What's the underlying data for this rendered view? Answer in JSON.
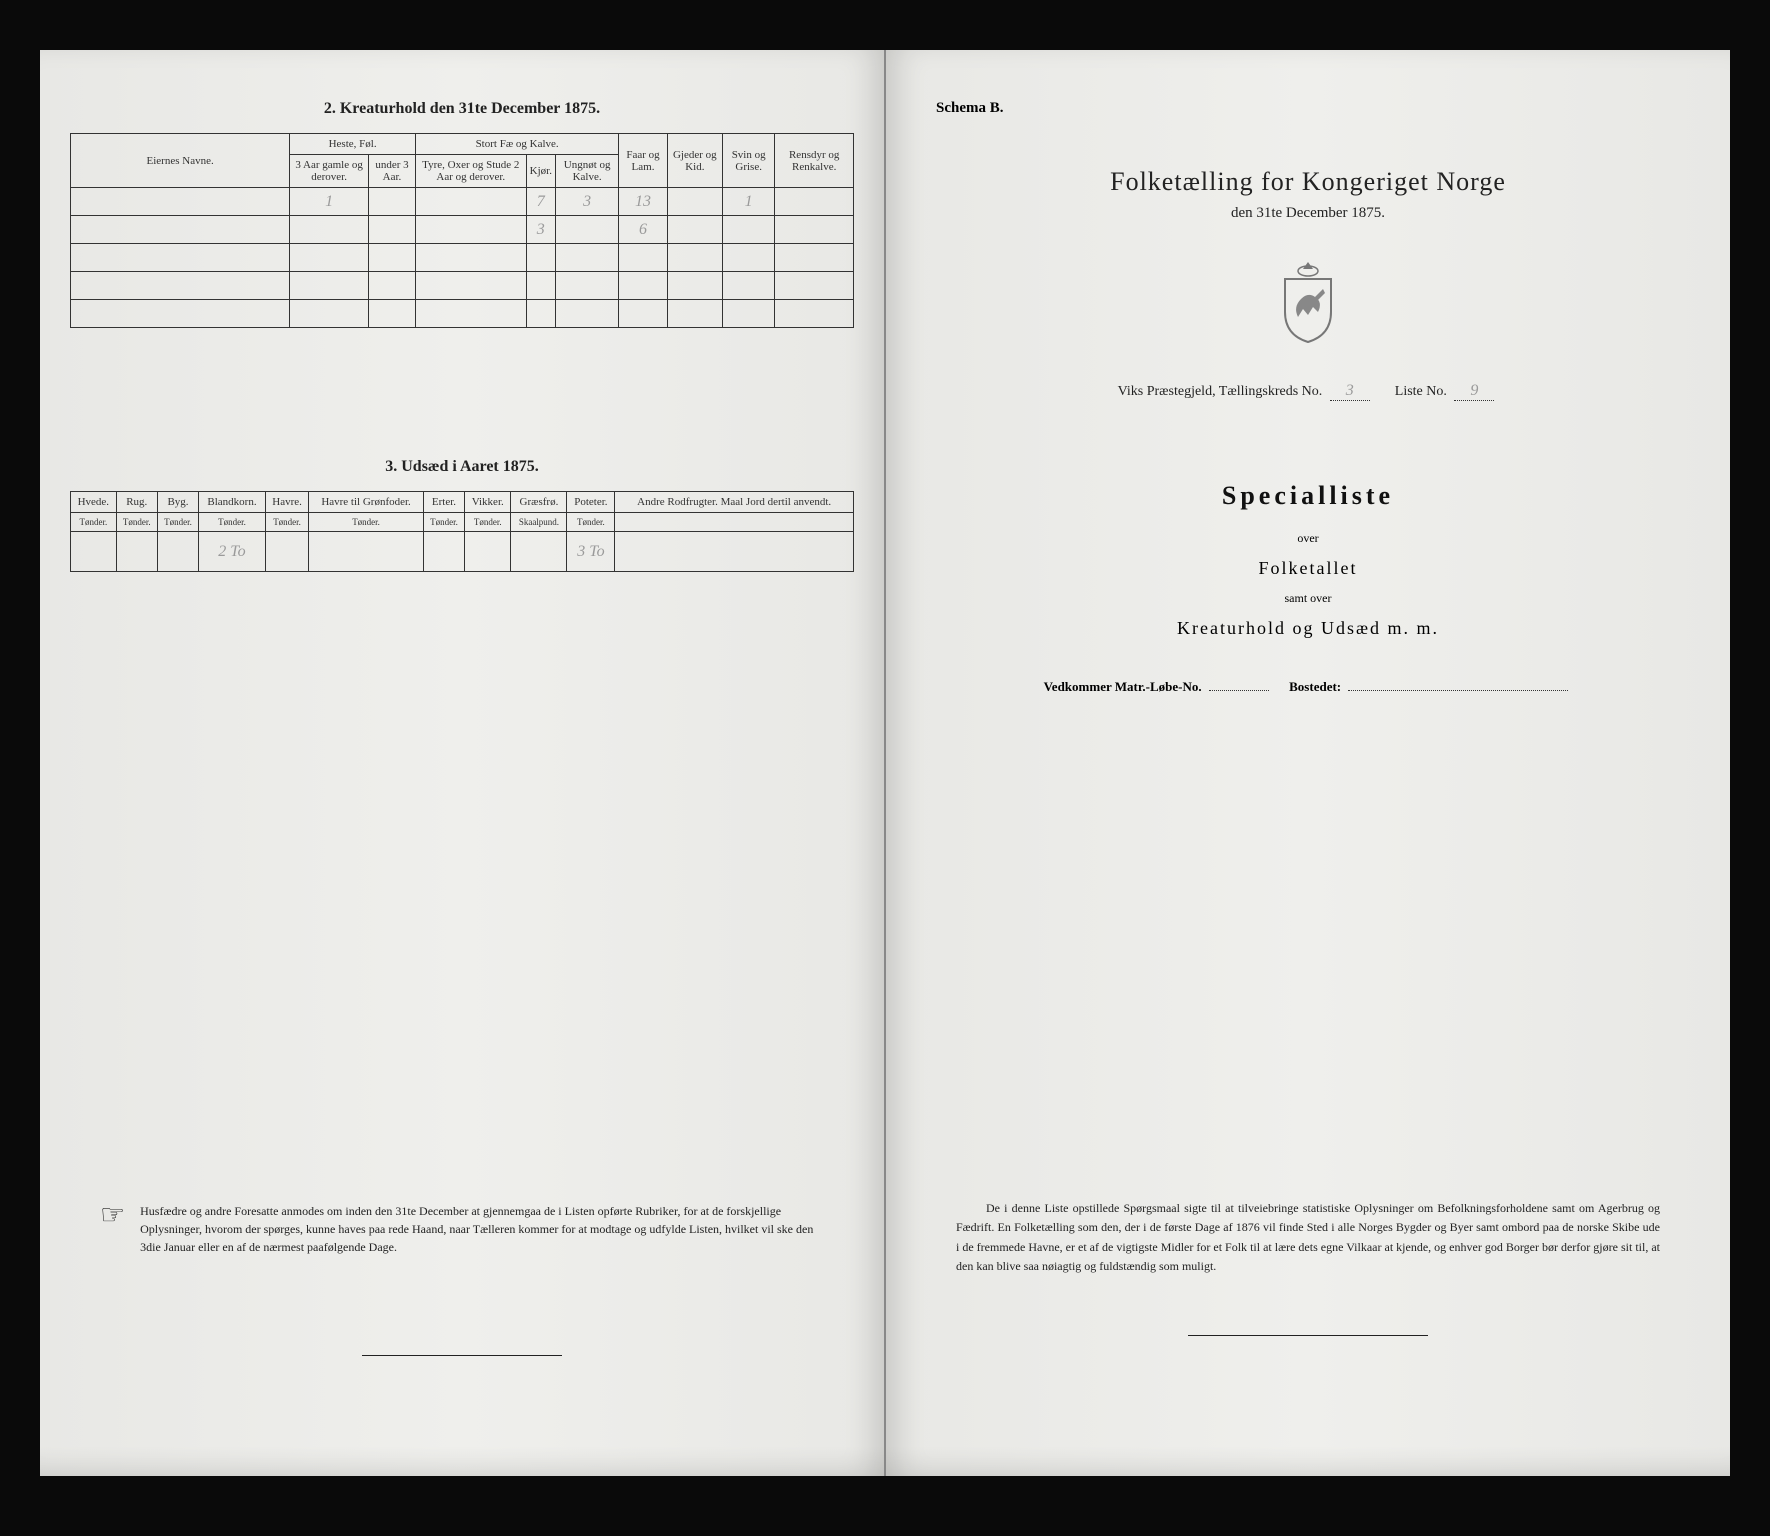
{
  "left": {
    "section2_title": "2.  Kreaturhold den 31te December 1875.",
    "tbl2": {
      "headers": {
        "eier": "Eiernes Navne.",
        "heste_group": "Heste, Føl.",
        "heste_a": "3 Aar gamle og derover.",
        "heste_b": "under 3 Aar.",
        "stort_group": "Stort Fæ og Kalve.",
        "stort_a": "Tyre, Oxer og Stude 2 Aar og derover.",
        "stort_b": "Kjør.",
        "stort_c": "Ungnøt og Kalve.",
        "faar": "Faar og Lam.",
        "gjeder": "Gjeder og Kid.",
        "svin": "Svin og Grise.",
        "rens": "Rensdyr og Renkalve."
      },
      "rows": [
        {
          "name": "",
          "h1": "1",
          "h2": "",
          "s1": "",
          "s2": "7",
          "s3": "3",
          "faar": "13",
          "gj": "",
          "sv": "1",
          "re": ""
        },
        {
          "name": "",
          "h1": "",
          "h2": "",
          "s1": "",
          "s2": "3",
          "s3": "",
          "faar": "6",
          "gj": "",
          "sv": "",
          "re": ""
        },
        {
          "name": "",
          "h1": "",
          "h2": "",
          "s1": "",
          "s2": "",
          "s3": "",
          "faar": "",
          "gj": "",
          "sv": "",
          "re": ""
        },
        {
          "name": "",
          "h1": "",
          "h2": "",
          "s1": "",
          "s2": "",
          "s3": "",
          "faar": "",
          "gj": "",
          "sv": "",
          "re": ""
        },
        {
          "name": "",
          "h1": "",
          "h2": "",
          "s1": "",
          "s2": "",
          "s3": "",
          "faar": "",
          "gj": "",
          "sv": "",
          "re": ""
        }
      ]
    },
    "section3_title": "3.  Udsæd i Aaret 1875.",
    "tbl3": {
      "headers": [
        "Hvede.",
        "Rug.",
        "Byg.",
        "Blandkorn.",
        "Havre.",
        "Havre til Grønfoder.",
        "Erter.",
        "Vikker.",
        "Græsfrø.",
        "Poteter.",
        "Andre Rodfrugter. Maal Jord dertil anvendt."
      ],
      "sub": [
        "Tønder.",
        "Tønder.",
        "Tønder.",
        "Tønder.",
        "Tønder.",
        "Tønder.",
        "Tønder.",
        "Tønder.",
        "Skaalpund.",
        "Tønder.",
        ""
      ],
      "row": [
        "",
        "",
        "",
        "2 To",
        "",
        "",
        "",
        "",
        "",
        "3 To",
        ""
      ]
    },
    "notice": "Husfædre og andre Foresatte anmodes om inden den 31te December at gjennemgaa de i Listen opførte Rubriker, for at de forskjellige Oplysninger, hvorom der spørges, kunne haves paa rede Haand, naar Tælleren kommer for at modtage og udfylde Listen, hvilket vil ske den 3die Januar eller en af de nærmest paafølgende Dage."
  },
  "right": {
    "schema": "Schema B.",
    "title": "Folketælling for Kongeriget Norge",
    "subtitle": "den 31te December 1875.",
    "parish_prefix": "Viks  Præstegjeld, Tællingskreds No.",
    "kreds_no": "3",
    "liste_label": "Liste No.",
    "liste_no": "9",
    "special": "Specialliste",
    "over": "over",
    "folketallet": "Folketallet",
    "samt": "samt over",
    "kreatur": "Kreaturhold og Udsæd m. m.",
    "vedkommer_label": "Vedkommer Matr.-Løbe-No.",
    "matr_no": "",
    "bostedet_label": "Bostedet:",
    "bostedet": "",
    "notice": "De i denne Liste opstillede Spørgsmaal sigte til at tilveiebringe statistiske Oplysninger om Befolkningsforholdene samt om Agerbrug og Fædrift.  En Folketælling som den, der i de første Dage af 1876 vil finde Sted i alle Norges Bygder og Byer samt ombord paa de norske Skibe ude i de fremmede Havne, er et af de vigtigste Midler for et Folk til at lære dets egne Vilkaar at kjende, og enhver god Borger bør derfor gjøre sit til, at den kan blive saa nøiagtig og fuldstændig som muligt."
  }
}
